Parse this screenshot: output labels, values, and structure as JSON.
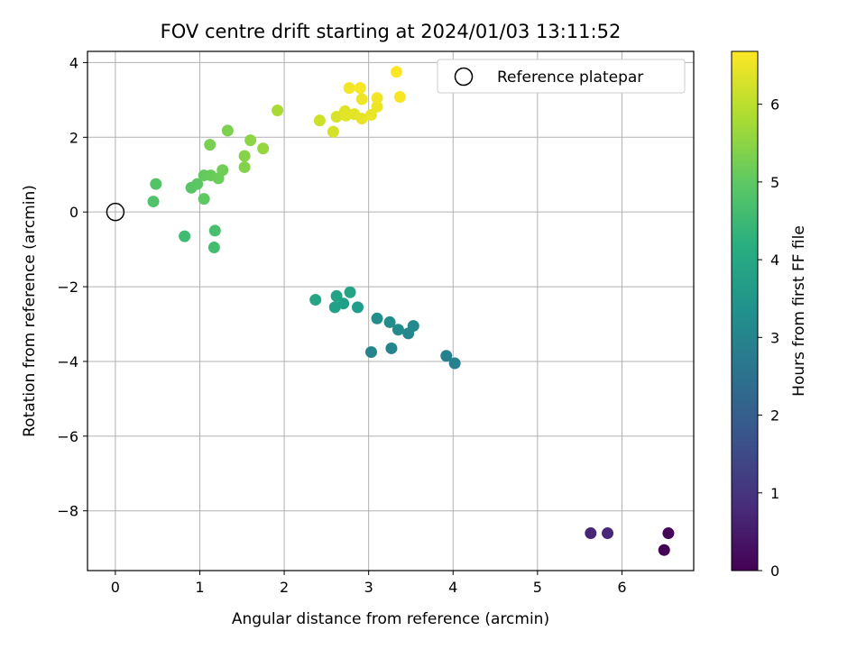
{
  "chart_data": {
    "type": "scatter",
    "title": "FOV centre drift starting at 2024/01/03 13:11:52",
    "xlabel": "Angular distance from reference (arcmin)",
    "ylabel": "Rotation from reference (arcmin)",
    "xlim": [
      -0.33,
      6.85
    ],
    "ylim": [
      -9.6,
      4.3
    ],
    "xticks": [
      0,
      1,
      2,
      3,
      4,
      5,
      6
    ],
    "yticks": [
      -8,
      -6,
      -4,
      -2,
      0,
      2,
      4
    ],
    "xtick_labels": [
      "0",
      "1",
      "2",
      "3",
      "4",
      "5",
      "6"
    ],
    "ytick_labels": [
      "−8",
      "−6",
      "−4",
      "−2",
      "0",
      "2",
      "4"
    ],
    "grid": true,
    "legend": {
      "position": "top-right",
      "entries": [
        {
          "label": "Reference platepar",
          "marker": "hollow-circle"
        }
      ]
    },
    "reference_point": {
      "x": 0,
      "y": 0
    },
    "colorbar": {
      "label": "Hours from first FF file",
      "colormap": "viridis",
      "range": [
        0,
        6.68
      ],
      "ticks": [
        0,
        1,
        2,
        3,
        4,
        5,
        6
      ],
      "tick_labels": [
        "0",
        "1",
        "2",
        "3",
        "4",
        "5",
        "6"
      ]
    },
    "points": [
      {
        "x": 6.5,
        "y": -9.05,
        "t": 0.0
      },
      {
        "x": 6.55,
        "y": -8.6,
        "t": 0.1
      },
      {
        "x": 5.63,
        "y": -8.6,
        "t": 0.7
      },
      {
        "x": 5.83,
        "y": -8.6,
        "t": 0.75
      },
      {
        "x": 4.02,
        "y": -4.05,
        "t": 2.9
      },
      {
        "x": 3.92,
        "y": -3.85,
        "t": 2.95
      },
      {
        "x": 3.03,
        "y": -3.75,
        "t": 3.0
      },
      {
        "x": 3.27,
        "y": -3.65,
        "t": 3.05
      },
      {
        "x": 3.47,
        "y": -3.25,
        "t": 3.1
      },
      {
        "x": 3.53,
        "y": -3.05,
        "t": 3.15
      },
      {
        "x": 3.35,
        "y": -3.15,
        "t": 3.2
      },
      {
        "x": 3.25,
        "y": -2.95,
        "t": 3.25
      },
      {
        "x": 3.1,
        "y": -2.85,
        "t": 3.3
      },
      {
        "x": 2.87,
        "y": -2.55,
        "t": 3.7
      },
      {
        "x": 2.7,
        "y": -2.45,
        "t": 3.75
      },
      {
        "x": 2.6,
        "y": -2.55,
        "t": 3.8
      },
      {
        "x": 2.62,
        "y": -2.25,
        "t": 3.85
      },
      {
        "x": 2.78,
        "y": -2.15,
        "t": 3.9
      },
      {
        "x": 2.37,
        "y": -2.35,
        "t": 3.95
      },
      {
        "x": 0.82,
        "y": -0.65,
        "t": 4.6
      },
      {
        "x": 1.17,
        "y": -0.95,
        "t": 4.65
      },
      {
        "x": 1.18,
        "y": -0.5,
        "t": 4.7
      },
      {
        "x": 0.45,
        "y": 0.28,
        "t": 4.8
      },
      {
        "x": 0.48,
        "y": 0.75,
        "t": 4.85
      },
      {
        "x": 0.9,
        "y": 0.65,
        "t": 4.9
      },
      {
        "x": 0.97,
        "y": 0.75,
        "t": 4.95
      },
      {
        "x": 1.05,
        "y": 0.35,
        "t": 5.0
      },
      {
        "x": 1.05,
        "y": 0.98,
        "t": 5.05
      },
      {
        "x": 1.13,
        "y": 0.98,
        "t": 5.1
      },
      {
        "x": 1.22,
        "y": 0.9,
        "t": 5.15
      },
      {
        "x": 1.27,
        "y": 1.12,
        "t": 5.2
      },
      {
        "x": 1.12,
        "y": 1.8,
        "t": 5.3
      },
      {
        "x": 1.33,
        "y": 2.18,
        "t": 5.35
      },
      {
        "x": 1.53,
        "y": 1.2,
        "t": 5.4
      },
      {
        "x": 1.53,
        "y": 1.5,
        "t": 5.45
      },
      {
        "x": 1.6,
        "y": 1.92,
        "t": 5.5
      },
      {
        "x": 1.75,
        "y": 1.7,
        "t": 5.6
      },
      {
        "x": 1.92,
        "y": 2.72,
        "t": 5.8
      },
      {
        "x": 2.42,
        "y": 2.45,
        "t": 6.2
      },
      {
        "x": 2.58,
        "y": 2.15,
        "t": 6.25
      },
      {
        "x": 2.62,
        "y": 2.55,
        "t": 6.3
      },
      {
        "x": 2.72,
        "y": 2.7,
        "t": 6.35
      },
      {
        "x": 2.73,
        "y": 2.58,
        "t": 6.4
      },
      {
        "x": 2.83,
        "y": 2.62,
        "t": 6.42
      },
      {
        "x": 2.92,
        "y": 2.5,
        "t": 6.45
      },
      {
        "x": 3.03,
        "y": 2.6,
        "t": 6.48
      },
      {
        "x": 3.1,
        "y": 2.82,
        "t": 6.5
      },
      {
        "x": 2.92,
        "y": 3.02,
        "t": 6.52
      },
      {
        "x": 3.1,
        "y": 3.05,
        "t": 6.55
      },
      {
        "x": 2.77,
        "y": 3.32,
        "t": 6.57
      },
      {
        "x": 2.9,
        "y": 3.32,
        "t": 6.6
      },
      {
        "x": 3.37,
        "y": 3.08,
        "t": 6.63
      },
      {
        "x": 3.33,
        "y": 3.75,
        "t": 6.68
      }
    ]
  }
}
